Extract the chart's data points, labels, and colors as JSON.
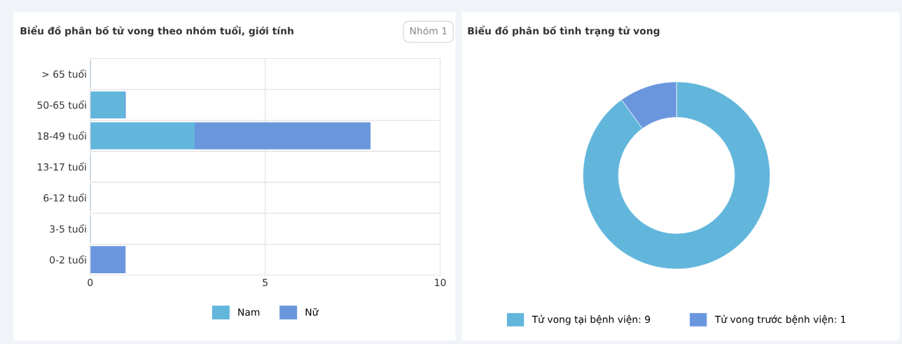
{
  "chart_data": [
    {
      "type": "bar",
      "orientation": "horizontal",
      "stacked": true,
      "title": "Biểu đồ phân bố tử vong theo nhóm tuổi, giới tính",
      "annotations": [
        "Nhóm 1"
      ],
      "categories": [
        "> 65 tuổi",
        "50-65 tuổi",
        "18-49 tuổi",
        "13-17 tuổi",
        "6-12 tuổi",
        "3-5 tuổi",
        "0-2 tuổi"
      ],
      "series": [
        {
          "name": "Nam",
          "color": "#62b6dc",
          "values": [
            0,
            1,
            3,
            0,
            0,
            0,
            0
          ]
        },
        {
          "name": "Nữ",
          "color": "#6a96de",
          "values": [
            0,
            0,
            5,
            0,
            0,
            0,
            1
          ]
        }
      ],
      "xlim": [
        0,
        10
      ],
      "xticks": [
        0,
        5,
        10
      ],
      "grid": "x",
      "legend": "bottom"
    },
    {
      "type": "donut",
      "title": "Biểu đồ phân bố tình trạng tử vong",
      "categories": [
        "Tử vong tại bệnh viện: 9",
        "Tử vong trước bệnh viện: 1"
      ],
      "values": [
        9,
        1
      ],
      "colors": [
        "#62b6dc",
        "#6a96de"
      ],
      "legend": "bottom"
    }
  ]
}
